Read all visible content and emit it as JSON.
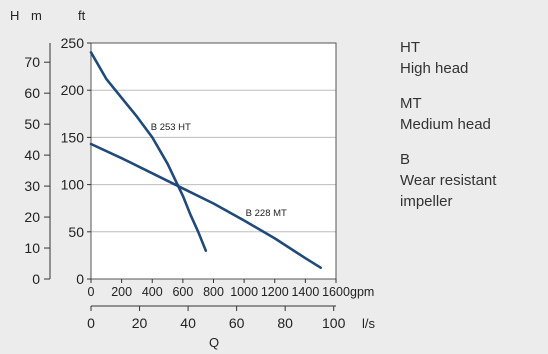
{
  "chart_data": {
    "type": "line",
    "title": "",
    "left_axis_units": {
      "h": "H",
      "m": "m",
      "ft": "ft"
    },
    "ylim_ft": [
      0,
      250
    ],
    "yticks_ft": [
      0,
      50,
      100,
      150,
      200,
      250
    ],
    "ylim_m": [
      0,
      76.2
    ],
    "yticks_m": [
      0,
      10,
      20,
      30,
      40,
      50,
      60,
      70
    ],
    "xlim_gpm": [
      0,
      1600
    ],
    "xticks_gpm": [
      0,
      200,
      400,
      600,
      800,
      1000,
      1200,
      1400,
      1600
    ],
    "xunit_gpm": "gpm",
    "xticks_ls": [
      0,
      20,
      40,
      60,
      80,
      100
    ],
    "xunit_ls": "l/s",
    "xlabel": "Q",
    "grid": "horizontal",
    "series": [
      {
        "name": "B 253 HT",
        "color": "#1f4a7a",
        "x": [
          0,
          100,
          200,
          300,
          400,
          500,
          600,
          650,
          700,
          750
        ],
        "y": [
          240,
          212,
          192,
          172,
          150,
          122,
          88,
          68,
          50,
          30
        ]
      },
      {
        "name": "B 228 MT",
        "color": "#1f4a7a",
        "x": [
          0,
          200,
          400,
          600,
          800,
          1000,
          1200,
          1400,
          1500
        ],
        "y": [
          143,
          128,
          112,
          96,
          80,
          62,
          43,
          22,
          12
        ]
      }
    ],
    "series_labels": [
      {
        "text": "B 253 HT",
        "x": 390,
        "y": 158
      },
      {
        "text": "B 228 MT",
        "x": 1010,
        "y": 67
      }
    ]
  },
  "legend": [
    {
      "code": "HT",
      "desc": [
        "High head"
      ]
    },
    {
      "code": "MT",
      "desc": [
        "Medium head"
      ]
    },
    {
      "code": "B",
      "desc": [
        "Wear resistant",
        "impeller"
      ]
    }
  ]
}
